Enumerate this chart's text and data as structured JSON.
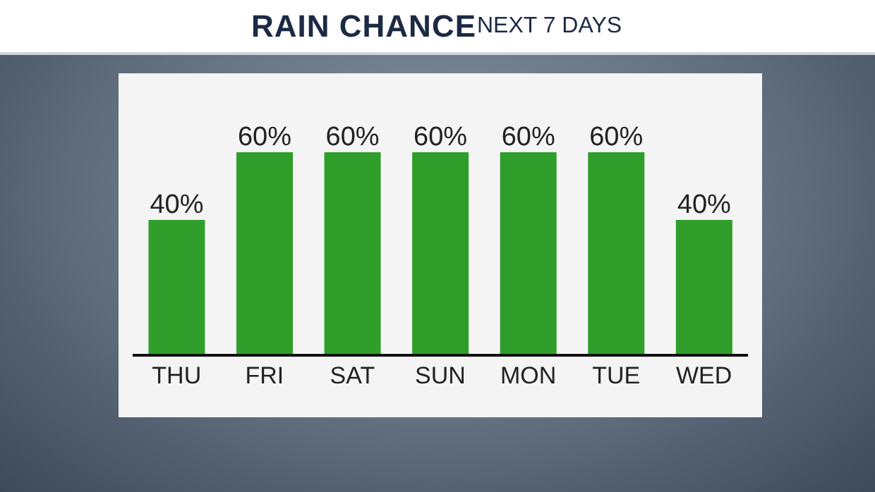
{
  "chart_data": {
    "type": "bar",
    "title": "RAIN CHANCE",
    "subtitle": "NEXT 7 DAYS",
    "categories": [
      "THU",
      "FRI",
      "SAT",
      "SUN",
      "MON",
      "TUE",
      "WED"
    ],
    "values": [
      40,
      60,
      60,
      60,
      60,
      60,
      40
    ],
    "value_labels": [
      "40%",
      "60%",
      "60%",
      "60%",
      "60%",
      "60%",
      "40%"
    ],
    "color": "#2f9e2a"
  }
}
